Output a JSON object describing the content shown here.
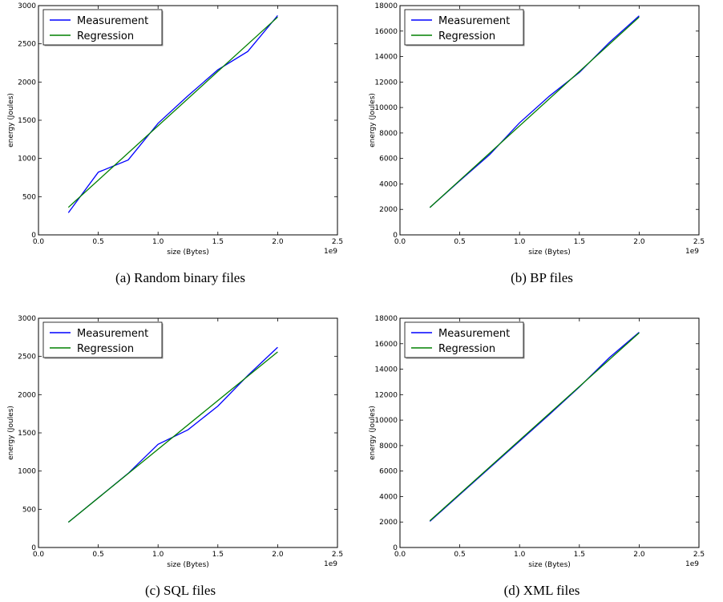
{
  "chart_data": [
    {
      "type": "line",
      "caption": "(a) Random binary files",
      "xlabel": "size (Bytes)",
      "ylabel": "energy (Joules)",
      "x_offset_label": "1e9",
      "xlim": [
        0.0,
        2.5
      ],
      "ylim": [
        0,
        3000
      ],
      "xticks": [
        0.0,
        0.5,
        1.0,
        1.5,
        2.0,
        2.5
      ],
      "xtick_labels": [
        "0.0",
        "0.5",
        "1.0",
        "1.5",
        "2.0",
        "2.5"
      ],
      "yticks": [
        0,
        500,
        1000,
        1500,
        2000,
        2500,
        3000
      ],
      "ytick_labels": [
        "0",
        "500",
        "1000",
        "1500",
        "2000",
        "2500",
        "3000"
      ],
      "legend_position": "top-left",
      "grid": false,
      "series": [
        {
          "name": "Measurement",
          "color": "#0000ff",
          "x": [
            0.25,
            0.5,
            0.75,
            1.0,
            1.25,
            1.5,
            1.75,
            2.0
          ],
          "y": [
            290,
            820,
            980,
            1460,
            1820,
            2160,
            2400,
            2870
          ]
        },
        {
          "name": "Regression",
          "color": "#008000",
          "x": [
            0.25,
            2.0
          ],
          "y": [
            360,
            2850
          ]
        }
      ]
    },
    {
      "type": "line",
      "caption": "(b)  BP files",
      "xlabel": "size (Bytes)",
      "ylabel": "energy (Joules)",
      "x_offset_label": "1e9",
      "xlim": [
        0.0,
        2.5
      ],
      "ylim": [
        0,
        18000
      ],
      "xticks": [
        0.0,
        0.5,
        1.0,
        1.5,
        2.0,
        2.5
      ],
      "xtick_labels": [
        "0.0",
        "0.5",
        "1.0",
        "1.5",
        "2.0",
        "2.5"
      ],
      "yticks": [
        0,
        2000,
        4000,
        6000,
        8000,
        10000,
        12000,
        14000,
        16000,
        18000
      ],
      "ytick_labels": [
        "0",
        "2000",
        "4000",
        "6000",
        "8000",
        "10000",
        "12000",
        "14000",
        "16000",
        "18000"
      ],
      "legend_position": "top-left",
      "grid": false,
      "series": [
        {
          "name": "Measurement",
          "color": "#0000ff",
          "x": [
            0.25,
            0.5,
            0.75,
            1.0,
            1.25,
            1.5,
            1.75,
            2.0
          ],
          "y": [
            2150,
            4250,
            6300,
            8800,
            10900,
            12750,
            15100,
            17200
          ]
        },
        {
          "name": "Regression",
          "color": "#008000",
          "x": [
            0.25,
            2.0
          ],
          "y": [
            2150,
            17100
          ]
        }
      ]
    },
    {
      "type": "line",
      "caption": "(c)  SQL files",
      "xlabel": "size (Bytes)",
      "ylabel": "energy (Joules)",
      "x_offset_label": "1e9",
      "xlim": [
        0.0,
        2.5
      ],
      "ylim": [
        0,
        3000
      ],
      "xticks": [
        0.0,
        0.5,
        1.0,
        1.5,
        2.0,
        2.5
      ],
      "xtick_labels": [
        "0.0",
        "0.5",
        "1.0",
        "1.5",
        "2.0",
        "2.5"
      ],
      "yticks": [
        0,
        500,
        1000,
        1500,
        2000,
        2500,
        3000
      ],
      "ytick_labels": [
        "0",
        "500",
        "1000",
        "1500",
        "2000",
        "2500",
        "3000"
      ],
      "legend_position": "top-left",
      "grid": false,
      "series": [
        {
          "name": "Measurement",
          "color": "#0000ff",
          "x": [
            0.25,
            0.5,
            0.75,
            1.0,
            1.25,
            1.5,
            1.75,
            2.0
          ],
          "y": [
            330,
            650,
            970,
            1350,
            1540,
            1850,
            2250,
            2620
          ]
        },
        {
          "name": "Regression",
          "color": "#008000",
          "x": [
            0.25,
            2.0
          ],
          "y": [
            330,
            2560
          ]
        }
      ]
    },
    {
      "type": "line",
      "caption": "(d)  XML files",
      "xlabel": "size (Bytes)",
      "ylabel": "energy (Joules)",
      "x_offset_label": "1e9",
      "xlim": [
        0.0,
        2.5
      ],
      "ylim": [
        0,
        18000
      ],
      "xticks": [
        0.0,
        0.5,
        1.0,
        1.5,
        2.0,
        2.5
      ],
      "xtick_labels": [
        "0.0",
        "0.5",
        "1.0",
        "1.5",
        "2.0",
        "2.5"
      ],
      "yticks": [
        0,
        2000,
        4000,
        6000,
        8000,
        10000,
        12000,
        14000,
        16000,
        18000
      ],
      "ytick_labels": [
        "0",
        "2000",
        "4000",
        "6000",
        "8000",
        "10000",
        "12000",
        "14000",
        "16000",
        "18000"
      ],
      "legend_position": "top-left",
      "grid": false,
      "series": [
        {
          "name": "Measurement",
          "color": "#0000ff",
          "x": [
            0.25,
            0.5,
            0.75,
            1.0,
            1.25,
            1.5,
            1.75,
            2.0
          ],
          "y": [
            2050,
            4150,
            6250,
            8350,
            10450,
            12600,
            14900,
            16900
          ]
        },
        {
          "name": "Regression",
          "color": "#008000",
          "x": [
            0.25,
            2.0
          ],
          "y": [
            2100,
            16850
          ]
        }
      ]
    }
  ]
}
